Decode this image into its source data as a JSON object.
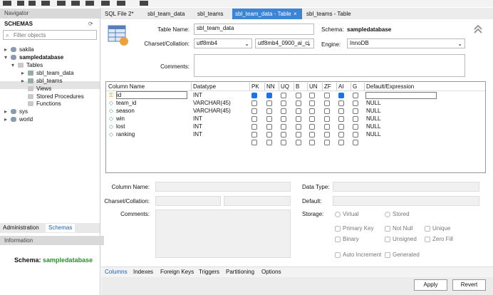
{
  "navigator": {
    "title": "Navigator",
    "schemas_label": "SCHEMAS",
    "filter_placeholder": "Filter objects",
    "tree": [
      "sakila",
      "sampledatabase",
      "Tables",
      "sbl_team_data",
      "sbl_teams",
      "Views",
      "Stored Procedures",
      "Functions",
      "sys",
      "world"
    ],
    "bottom_tabs": [
      "Administration",
      "Schemas"
    ]
  },
  "information": {
    "title": "Information",
    "schema_label": "Schema:",
    "schema_name": "sampledatabase"
  },
  "tabs": [
    "SQL File 2*",
    "sbl_team_data",
    "sbl_teams",
    "sbl_team_data - Table",
    "sbl_teams - Table"
  ],
  "form": {
    "table_name_label": "Table Name:",
    "table_name": "sbl_team_data",
    "schema_label": "Schema:",
    "schema": "sampledatabase",
    "charset_label": "Charset/Collation:",
    "charset": "utf8mb4",
    "collation": "utf8mb4_0900_ai_ci",
    "engine_label": "Engine:",
    "engine": "InnoDB",
    "comments_label": "Comments:"
  },
  "columns_table": {
    "headers": [
      "Column Name",
      "Datatype",
      "PK",
      "NN",
      "UQ",
      "B",
      "UN",
      "ZF",
      "AI",
      "G",
      "Default/Expression"
    ],
    "rows": [
      {
        "name": "id",
        "datatype": "INT",
        "flags": [
          true,
          true,
          false,
          false,
          false,
          false,
          true,
          false
        ]
      },
      {
        "name": "team_id",
        "datatype": "VARCHAR(45)",
        "flags": [
          false,
          false,
          false,
          false,
          false,
          false,
          false,
          false
        ],
        "default": "NULL"
      },
      {
        "name": "season",
        "datatype": "VARCHAR(45)",
        "flags": [
          false,
          false,
          false,
          false,
          false,
          false,
          false,
          false
        ],
        "default": "NULL"
      },
      {
        "name": "win",
        "datatype": "INT",
        "flags": [
          false,
          false,
          false,
          false,
          false,
          false,
          false,
          false
        ],
        "default": "NULL"
      },
      {
        "name": "lost",
        "datatype": "INT",
        "flags": [
          false,
          false,
          false,
          false,
          false,
          false,
          false,
          false
        ],
        "default": "NULL"
      },
      {
        "name": "ranking",
        "datatype": "INT",
        "flags": [
          false,
          false,
          false,
          false,
          false,
          false,
          false,
          false
        ],
        "default": "NULL"
      }
    ]
  },
  "details": {
    "column_name_label": "Column Name:",
    "data_type_label": "Data Type:",
    "charset_label": "Charset/Collation:",
    "default_label": "Default:",
    "comments_label": "Comments:",
    "storage_label": "Storage:",
    "storage_options": [
      "Virtual",
      "Stored"
    ],
    "checkboxes": [
      "Primary Key",
      "Not Null",
      "Unique",
      "Binary",
      "Unsigned",
      "Zero Fill",
      "Auto Increment",
      "Generated"
    ]
  },
  "editor_tabs": [
    "Columns",
    "Indexes",
    "Foreign Keys",
    "Triggers",
    "Partitioning",
    "Options"
  ],
  "buttons": [
    "Apply",
    "Revert"
  ]
}
